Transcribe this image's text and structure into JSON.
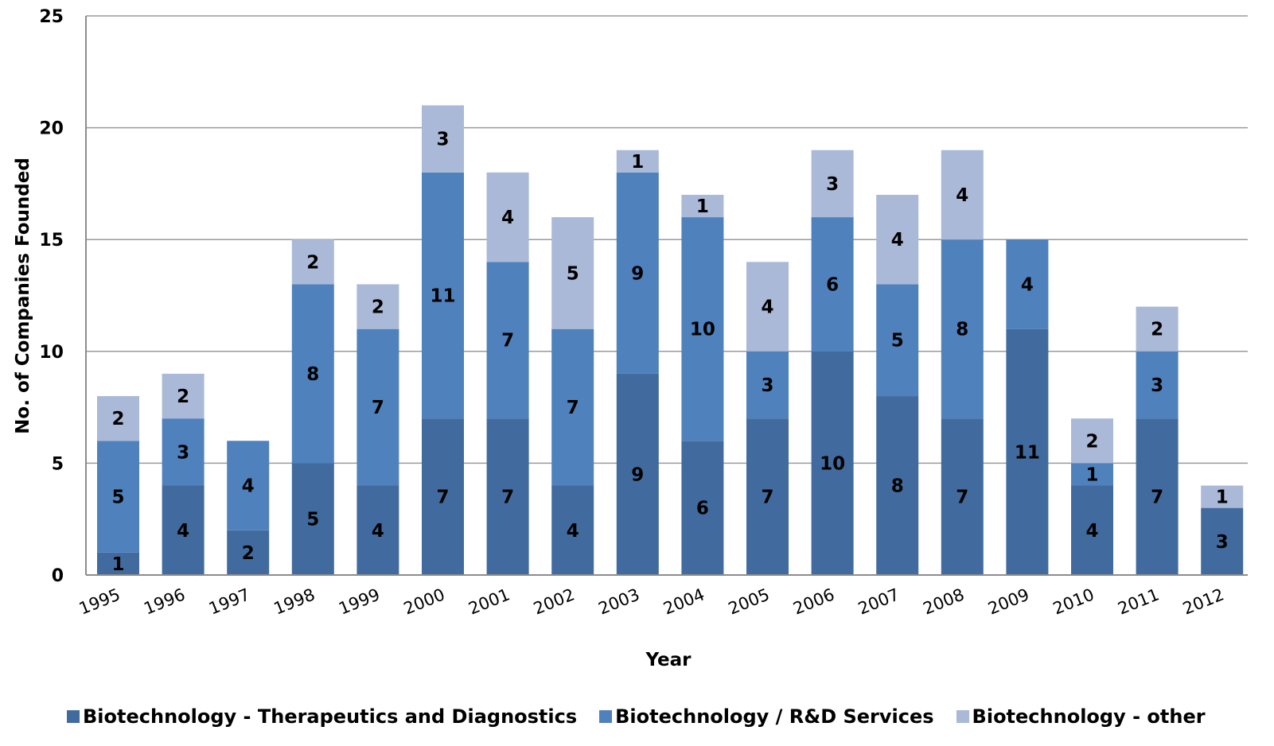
{
  "chart_data": {
    "type": "bar",
    "stacked": true,
    "categories": [
      "1995",
      "1996",
      "1997",
      "1998",
      "1999",
      "2000",
      "2001",
      "2002",
      "2003",
      "2004",
      "2005",
      "2006",
      "2007",
      "2008",
      "2009",
      "2010",
      "2011",
      "2012"
    ],
    "series": [
      {
        "name": "Biotechnology - Therapeutics and Diagnostics",
        "color": "#416b9e",
        "values": [
          1,
          4,
          2,
          5,
          4,
          7,
          7,
          4,
          9,
          6,
          7,
          10,
          8,
          7,
          11,
          4,
          7,
          3
        ]
      },
      {
        "name": "Biotechnology / R&D Services",
        "color": "#4f81bd",
        "values": [
          5,
          3,
          4,
          8,
          7,
          11,
          7,
          7,
          9,
          10,
          3,
          6,
          5,
          8,
          4,
          1,
          3,
          null
        ]
      },
      {
        "name": "Biotechnology - other",
        "color": "#aab9d8",
        "values": [
          2,
          2,
          null,
          2,
          2,
          3,
          4,
          5,
          1,
          1,
          4,
          3,
          4,
          4,
          null,
          2,
          2,
          1
        ]
      }
    ],
    "xlabel": "Year",
    "ylabel": "No. of Companies Founded",
    "ylim": [
      0,
      25
    ],
    "yticks": [
      "0",
      "5",
      "10",
      "15",
      "20",
      "25"
    ],
    "grid": true,
    "legend_position": "bottom"
  }
}
